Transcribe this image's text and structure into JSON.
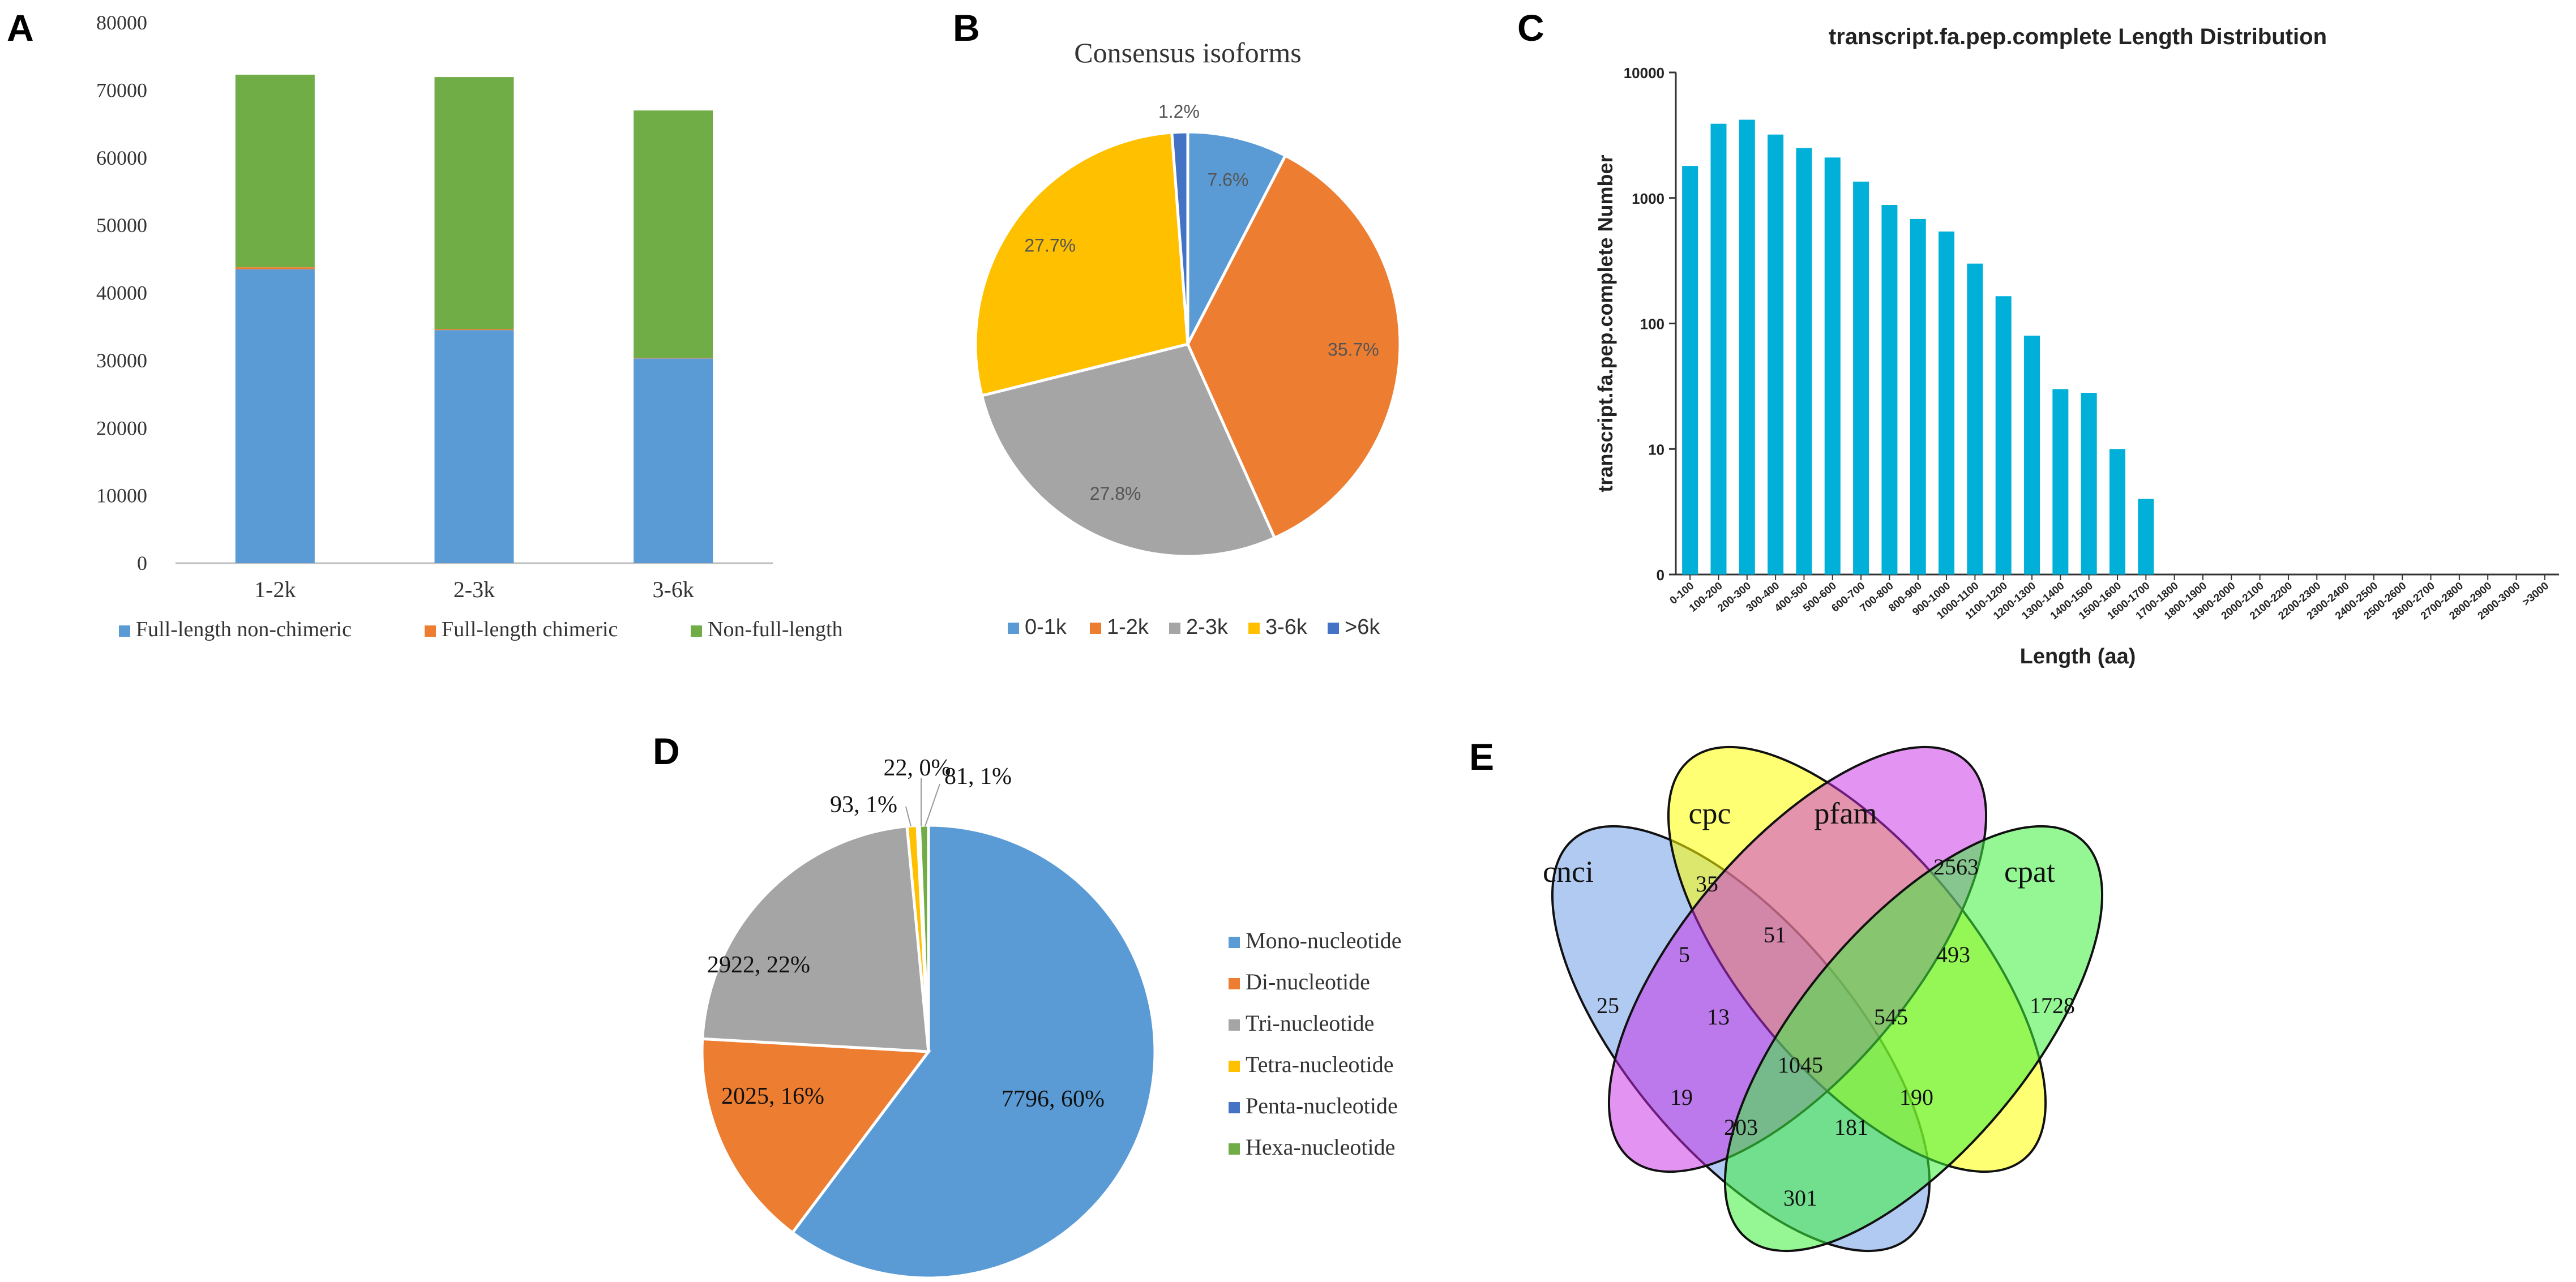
{
  "panel_labels": {
    "a": "A",
    "b": "B",
    "c": "C",
    "d": "D",
    "e": "E"
  },
  "chart_data": [
    {
      "panel": "A",
      "type": "bar",
      "stacked": true,
      "categories": [
        "1-2k",
        "2-3k",
        "3-6k"
      ],
      "series": [
        {
          "name": "Full-length non-chimeric",
          "color": "#5b9bd5",
          "values": [
            43500,
            34500,
            30300
          ]
        },
        {
          "name": "Full-length chimeric",
          "color": "#ed7d31",
          "values": [
            300,
            150,
            100
          ]
        },
        {
          "name": "Non-full-length",
          "color": "#70ad47",
          "values": [
            28500,
            37300,
            36600
          ]
        }
      ],
      "ylim": [
        0,
        80000
      ],
      "yticks": [
        0,
        10000,
        20000,
        30000,
        40000,
        50000,
        60000,
        70000,
        80000
      ],
      "legend": "bottom"
    },
    {
      "panel": "B",
      "type": "pie",
      "title": "Consensus isoforms",
      "labels": [
        "0-1k",
        "1-2k",
        "2-3k",
        "3-6k",
        ">6k"
      ],
      "values": [
        7.6,
        35.7,
        27.8,
        27.7,
        1.2
      ],
      "value_labels": [
        "7.6%",
        "35.7%",
        "27.8%",
        "27.7%",
        "1.2%"
      ],
      "colors": [
        "#5b9bd5",
        "#ed7d31",
        "#a5a5a5",
        "#ffc000",
        "#4472c4"
      ],
      "legend": "bottom"
    },
    {
      "panel": "C",
      "type": "bar",
      "title": "transcript.fa.pep.complete Length Distribution",
      "xlabel": "Length (aa)",
      "ylabel": "transcript.fa.pep.complete Number",
      "yscale": "log",
      "ytick_labels": [
        "0",
        "10",
        "100",
        "1000",
        "10000"
      ],
      "color": "#00b0d8",
      "categories": [
        "0-100",
        "100-200",
        "200-300",
        "300-400",
        "400-500",
        "500-600",
        "600-700",
        "700-800",
        "800-900",
        "900-1000",
        "1000-1100",
        "1100-1200",
        "1200-1300",
        "1300-1400",
        "1400-1500",
        "1500-1600",
        "1600-1700",
        "1700-1800",
        "1800-1900",
        "1900-2000",
        "2000-2100",
        "2100-2200",
        "2200-2300",
        "2300-2400",
        "2400-2500",
        "2500-2600",
        "2600-2700",
        "2700-2800",
        "2800-2900",
        "2900-3000",
        ">3000"
      ],
      "values": [
        1800,
        3900,
        4200,
        3200,
        2500,
        2100,
        1350,
        880,
        680,
        540,
        300,
        165,
        80,
        30,
        28,
        10,
        4,
        0,
        0,
        0,
        0,
        0,
        0,
        0,
        0,
        0,
        0,
        0,
        0,
        0,
        0
      ]
    },
    {
      "panel": "D",
      "type": "pie",
      "labels": [
        "Mono-nucleotide",
        "Di-nucleotide",
        "Tri-nucleotide",
        "Tetra-nucleotide",
        "Penta-nucleotide",
        "Hexa-nucleotide"
      ],
      "values": [
        7796,
        2025,
        2922,
        93,
        22,
        81
      ],
      "value_labels": [
        "7796, 60%",
        "2025, 16%",
        "2922, 22%",
        "93, 1%",
        "22, 0%",
        "81, 1%"
      ],
      "colors": [
        "#5b9bd5",
        "#ed7d31",
        "#a5a5a5",
        "#ffc000",
        "#4472c4",
        "#70ad47"
      ],
      "legend": "right"
    },
    {
      "panel": "E",
      "type": "venn",
      "sets": [
        "cnci",
        "cpc",
        "pfam",
        "cpat"
      ],
      "regions": [
        {
          "sets": [
            "cnci"
          ],
          "value": "25"
        },
        {
          "sets": [
            "cpc"
          ],
          "value": "35"
        },
        {
          "sets": [
            "pfam"
          ],
          "value": "2563"
        },
        {
          "sets": [
            "cpat"
          ],
          "value": "1728"
        },
        {
          "sets": [
            "cnci",
            "cpc"
          ],
          "value": "5"
        },
        {
          "sets": [
            "cpc",
            "pfam"
          ],
          "value": "51"
        },
        {
          "sets": [
            "pfam",
            "cpat"
          ],
          "value": "493"
        },
        {
          "sets": [
            "cnci",
            "cpc",
            "pfam"
          ],
          "value": "13"
        },
        {
          "sets": [
            "cpc",
            "pfam",
            "cpat"
          ],
          "value": "545"
        },
        {
          "sets": [
            "cnci",
            "cpc",
            "pfam",
            "cpat"
          ],
          "value": "1045"
        },
        {
          "sets": [
            "cnci",
            "pfam"
          ],
          "value": "19"
        },
        {
          "sets": [
            "cnci",
            "pfam",
            "cpat"
          ],
          "value": "203"
        },
        {
          "sets": [
            "cnci",
            "cpc",
            "cpat"
          ],
          "value": "181"
        },
        {
          "sets": [
            "cpc",
            "cpat"
          ],
          "value": "190"
        },
        {
          "sets": [
            "cnci",
            "cpat"
          ],
          "value": "301"
        }
      ]
    }
  ]
}
